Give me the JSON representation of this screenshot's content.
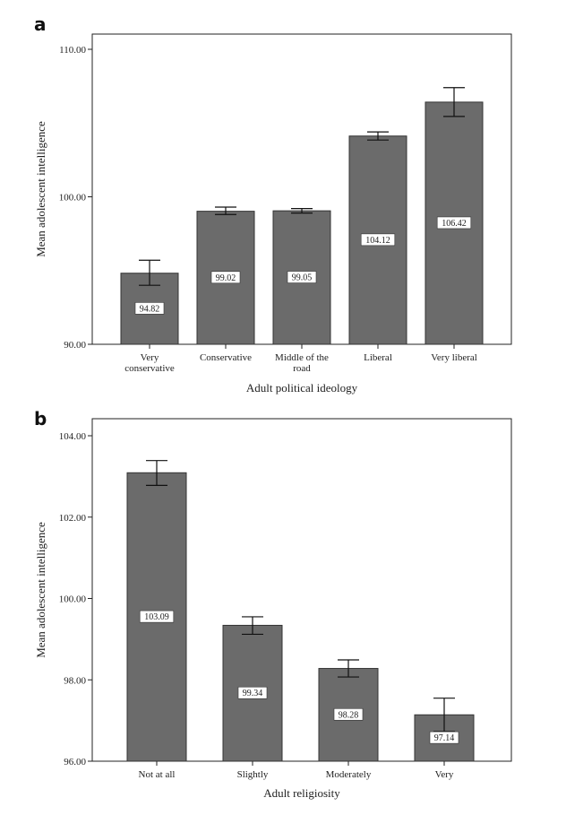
{
  "chart_data": [
    {
      "panel": "a",
      "type": "bar",
      "xlabel": "Adult political ideology",
      "ylabel": "Mean adolescent intelligence",
      "ylim": [
        90,
        110
      ],
      "yticks": [
        "90.00",
        "100.00",
        "110.00"
      ],
      "categories": [
        [
          "Very",
          "conservative"
        ],
        [
          "Conservative"
        ],
        [
          "Middle of the",
          "road"
        ],
        [
          "Liberal"
        ],
        [
          "Very liberal"
        ]
      ],
      "values": [
        94.82,
        99.02,
        99.05,
        104.12,
        106.42
      ],
      "labels": [
        "94.82",
        "99.02",
        "99.05",
        "104.12",
        "106.42"
      ],
      "error_low": [
        94.0,
        98.8,
        98.9,
        103.85,
        105.45
      ],
      "error_high": [
        95.7,
        99.3,
        99.2,
        104.4,
        107.4
      ],
      "grid": false,
      "bar_color": "#6b6b6b"
    },
    {
      "panel": "b",
      "type": "bar",
      "xlabel": "Adult religiosity",
      "ylabel": "Mean adolescent intelligence",
      "ylim": [
        96,
        104
      ],
      "yticks": [
        "96.00",
        "98.00",
        "100.00",
        "102.00",
        "104.00"
      ],
      "categories": [
        [
          "Not at all"
        ],
        [
          "Slightly"
        ],
        [
          "Moderately"
        ],
        [
          "Very"
        ]
      ],
      "values": [
        103.09,
        99.34,
        98.28,
        97.14
      ],
      "labels": [
        "103.09",
        "99.34",
        "98.28",
        "97.14"
      ],
      "error_low": [
        102.78,
        99.12,
        98.07,
        96.73
      ],
      "error_high": [
        103.39,
        99.55,
        98.49,
        97.55
      ],
      "grid": false,
      "bar_color": "#6b6b6b"
    }
  ]
}
